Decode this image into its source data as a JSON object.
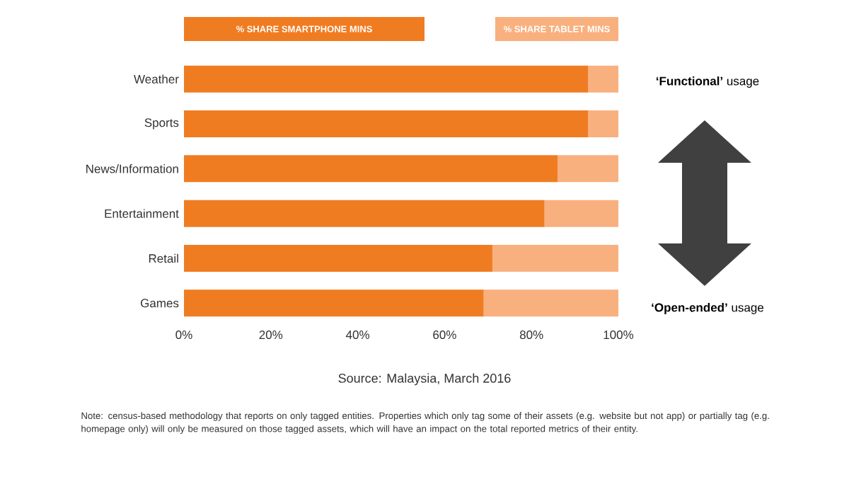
{
  "chart_data": {
    "type": "bar",
    "orientation": "horizontal",
    "stacked": true,
    "categories": [
      "Weather",
      "Sports",
      "News/Information",
      "Entertainment",
      "Retail",
      "Games"
    ],
    "series": [
      {
        "name": "% SHARE SMARTPHONE MINS",
        "color": "#f07c22",
        "values": [
          93,
          93,
          86,
          83,
          71,
          69
        ]
      },
      {
        "name": "% SHARE TABLET MINS",
        "color": "#f9b07f",
        "values": [
          7,
          7,
          14,
          17,
          29,
          31
        ]
      }
    ],
    "xlim": [
      0,
      100
    ],
    "xticks": [
      {
        "value": 0,
        "label": "0%"
      },
      {
        "value": 20,
        "label": "20%"
      },
      {
        "value": 40,
        "label": "40%"
      },
      {
        "value": 60,
        "label": "60%"
      },
      {
        "value": 80,
        "label": "80%"
      },
      {
        "value": 100,
        "label": "100%"
      }
    ],
    "legend": "top",
    "annotations": [
      "**‘Functional’** usage",
      "**‘Open-ended’** usage",
      "Source: Malaysia, March 2016",
      "Note: census-based methodology that reports on only tagged entities. Properties which only tag some of their assets (e.g. website but not app) or partially tag (e.g. homepage only) will only be measured on those tagged assets, which will have an impact on the total reported metrics of their entity."
    ]
  }
}
